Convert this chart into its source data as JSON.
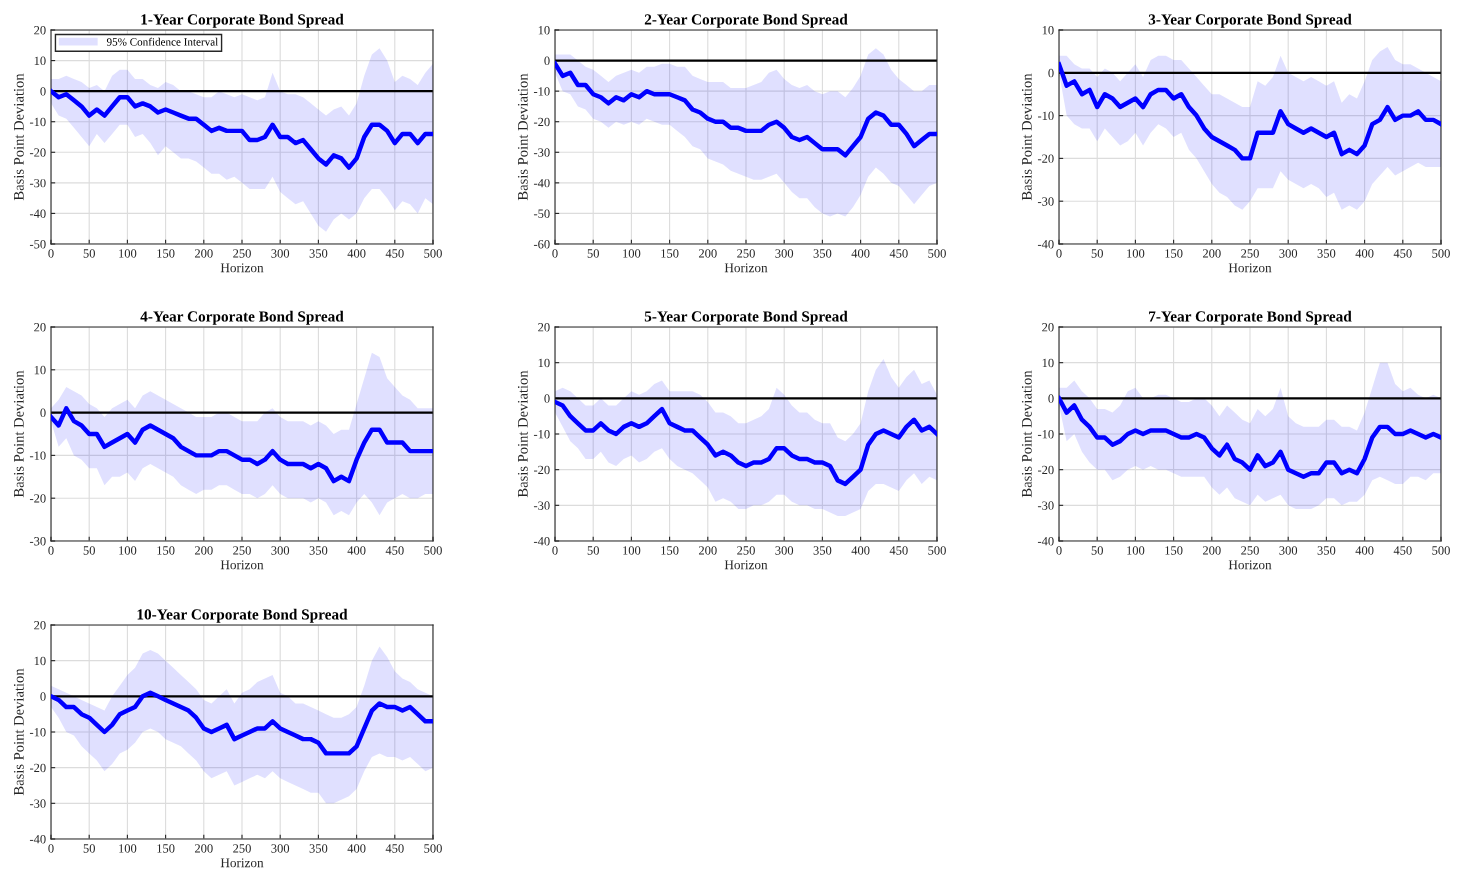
{
  "chart_data": [
    {
      "type": "line",
      "title": "1-Year Corporate Bond Spread",
      "xlabel": "Horizon",
      "ylabel": "Basis Point Deviation",
      "xlim": [
        0,
        500
      ],
      "ylim": [
        -50,
        20
      ],
      "xticks": [
        0,
        50,
        100,
        150,
        200,
        250,
        300,
        350,
        400,
        450,
        500
      ],
      "yticks": [
        -50,
        -40,
        -30,
        -20,
        -10,
        0,
        10,
        20
      ],
      "grid": true,
      "legend": "top left",
      "x": [
        0,
        10,
        20,
        30,
        40,
        50,
        60,
        70,
        80,
        90,
        100,
        110,
        120,
        130,
        140,
        150,
        160,
        170,
        180,
        190,
        200,
        210,
        220,
        230,
        240,
        250,
        260,
        270,
        280,
        290,
        300,
        310,
        320,
        330,
        340,
        350,
        360,
        370,
        380,
        390,
        400,
        410,
        420,
        430,
        440,
        450,
        460,
        470,
        480,
        490,
        500
      ],
      "ref_lines": [
        {
          "axis": "y",
          "value": 0,
          "color": "#000000"
        }
      ],
      "series": [
        {
          "name": "95% Confidence Interval",
          "color": "#0000ff",
          "upper": [
            4,
            4,
            5,
            4,
            3,
            1,
            2,
            0,
            5,
            7,
            7,
            4,
            4,
            2,
            1,
            3,
            2,
            0,
            0,
            -1,
            -2,
            -2,
            0,
            -1,
            -2,
            -1,
            -2,
            -3,
            -2,
            6,
            0,
            -1,
            -1,
            -2,
            -4,
            -6,
            -8,
            -6,
            -5,
            -8,
            -4,
            5,
            12,
            14,
            10,
            3,
            5,
            4,
            2,
            6,
            9
          ],
          "lower": [
            -4,
            -8,
            -9,
            -12,
            -15,
            -18,
            -14,
            -17,
            -14,
            -11,
            -11,
            -15,
            -14,
            -17,
            -21,
            -18,
            -20,
            -22,
            -22,
            -23,
            -25,
            -27,
            -27,
            -29,
            -28,
            -30,
            -32,
            -32,
            -32,
            -28,
            -33,
            -35,
            -37,
            -36,
            -40,
            -44,
            -46,
            -42,
            -40,
            -42,
            -40,
            -35,
            -32,
            -32,
            -35,
            -39,
            -36,
            -37,
            -40,
            -35,
            -37
          ],
          "values": [
            0,
            -2,
            -1,
            -3,
            -5,
            -8,
            -6,
            -8,
            -5,
            -2,
            -2,
            -5,
            -4,
            -5,
            -7,
            -6,
            -7,
            -8,
            -9,
            -9,
            -11,
            -13,
            -12,
            -13,
            -13,
            -13,
            -16,
            -16,
            -15,
            -11,
            -15,
            -15,
            -17,
            -16,
            -19,
            -22,
            -24,
            -21,
            -22,
            -25,
            -22,
            -15,
            -11,
            -11,
            -13,
            -17,
            -14,
            -14,
            -17,
            -14,
            -14
          ]
        }
      ]
    },
    {
      "type": "line",
      "title": "2-Year Corporate Bond Spread",
      "xlabel": "Horizon",
      "ylabel": "Basis Point Deviation",
      "xlim": [
        0,
        500
      ],
      "ylim": [
        -60,
        10
      ],
      "xticks": [
        0,
        50,
        100,
        150,
        200,
        250,
        300,
        350,
        400,
        450,
        500
      ],
      "yticks": [
        -60,
        -50,
        -40,
        -30,
        -20,
        -10,
        0,
        10
      ],
      "grid": true,
      "x": [
        0,
        10,
        20,
        30,
        40,
        50,
        60,
        70,
        80,
        90,
        100,
        110,
        120,
        130,
        140,
        150,
        160,
        170,
        180,
        190,
        200,
        210,
        220,
        230,
        240,
        250,
        260,
        270,
        280,
        290,
        300,
        310,
        320,
        330,
        340,
        350,
        360,
        370,
        380,
        390,
        400,
        410,
        420,
        430,
        440,
        450,
        460,
        470,
        480,
        490,
        500
      ],
      "ref_lines": [
        {
          "axis": "y",
          "value": 0,
          "color": "#000000"
        }
      ],
      "series": [
        {
          "color": "#0000ff",
          "upper": [
            2,
            2,
            2,
            0,
            -2,
            -3,
            -5,
            -7,
            -5,
            -4,
            -3,
            -4,
            -2,
            -2,
            -1,
            -1,
            -2,
            -2,
            -5,
            -6,
            -7,
            -7,
            -7,
            -9,
            -9,
            -9,
            -8,
            -7,
            -4,
            -3,
            -6,
            -8,
            -9,
            -8,
            -10,
            -11,
            -10,
            -10,
            -12,
            -9,
            -5,
            2,
            4,
            2,
            -3,
            -6,
            -8,
            -10,
            -10,
            -8,
            -8
          ],
          "lower": [
            -4,
            -10,
            -11,
            -15,
            -16,
            -19,
            -20,
            -22,
            -20,
            -21,
            -20,
            -21,
            -19,
            -20,
            -21,
            -21,
            -23,
            -25,
            -28,
            -29,
            -32,
            -33,
            -34,
            -36,
            -37,
            -38,
            -39,
            -39,
            -38,
            -37,
            -40,
            -43,
            -45,
            -45,
            -48,
            -50,
            -51,
            -50,
            -51,
            -48,
            -44,
            -38,
            -35,
            -37,
            -40,
            -41,
            -44,
            -47,
            -44,
            -41,
            -40
          ],
          "values": [
            -1,
            -5,
            -4,
            -8,
            -8,
            -11,
            -12,
            -14,
            -12,
            -13,
            -11,
            -12,
            -10,
            -11,
            -11,
            -11,
            -12,
            -13,
            -16,
            -17,
            -19,
            -20,
            -20,
            -22,
            -22,
            -23,
            -23,
            -23,
            -21,
            -20,
            -22,
            -25,
            -26,
            -25,
            -27,
            -29,
            -29,
            -29,
            -31,
            -28,
            -25,
            -19,
            -17,
            -18,
            -21,
            -21,
            -24,
            -28,
            -26,
            -24,
            -24
          ]
        }
      ]
    },
    {
      "type": "line",
      "title": "3-Year Corporate Bond Spread",
      "xlabel": "Horizon",
      "ylabel": "Basis Point Deviation",
      "xlim": [
        0,
        500
      ],
      "ylim": [
        -40,
        10
      ],
      "xticks": [
        0,
        50,
        100,
        150,
        200,
        250,
        300,
        350,
        400,
        450,
        500
      ],
      "yticks": [
        -40,
        -30,
        -20,
        -10,
        0,
        10
      ],
      "grid": true,
      "x": [
        0,
        10,
        20,
        30,
        40,
        50,
        60,
        70,
        80,
        90,
        100,
        110,
        120,
        130,
        140,
        150,
        160,
        170,
        180,
        190,
        200,
        210,
        220,
        230,
        240,
        250,
        260,
        270,
        280,
        290,
        300,
        310,
        320,
        330,
        340,
        350,
        360,
        370,
        380,
        390,
        400,
        410,
        420,
        430,
        440,
        450,
        460,
        470,
        480,
        490,
        500
      ],
      "ref_lines": [
        {
          "axis": "y",
          "value": 0,
          "color": "#000000"
        }
      ],
      "series": [
        {
          "color": "#0000ff",
          "upper": [
            4,
            4,
            2,
            1,
            1,
            -1,
            1,
            0,
            -2,
            0,
            2,
            -1,
            3,
            4,
            4,
            3,
            3,
            1,
            -1,
            -3,
            -5,
            -5,
            -6,
            -7,
            -8,
            -8,
            -2,
            -3,
            -1,
            4,
            0,
            -1,
            -2,
            -1,
            -2,
            -3,
            -2,
            -7,
            -5,
            -6,
            -2,
            3,
            5,
            6,
            3,
            2,
            2,
            1,
            0,
            -1,
            -2
          ],
          "lower": [
            0,
            -10,
            -12,
            -13,
            -13,
            -16,
            -13,
            -15,
            -17,
            -16,
            -14,
            -17,
            -14,
            -12,
            -13,
            -15,
            -14,
            -18,
            -20,
            -23,
            -26,
            -28,
            -29,
            -31,
            -32,
            -30,
            -27,
            -27,
            -27,
            -23,
            -25,
            -26,
            -27,
            -26,
            -27,
            -29,
            -28,
            -32,
            -31,
            -32,
            -30,
            -26,
            -24,
            -22,
            -24,
            -23,
            -22,
            -21,
            -22,
            -22,
            -22
          ],
          "values": [
            2,
            -3,
            -2,
            -5,
            -4,
            -8,
            -5,
            -6,
            -8,
            -7,
            -6,
            -8,
            -5,
            -4,
            -4,
            -6,
            -5,
            -8,
            -10,
            -13,
            -15,
            -16,
            -17,
            -18,
            -20,
            -20,
            -14,
            -14,
            -14,
            -9,
            -12,
            -13,
            -14,
            -13,
            -14,
            -15,
            -14,
            -19,
            -18,
            -19,
            -17,
            -12,
            -11,
            -8,
            -11,
            -10,
            -10,
            -9,
            -11,
            -11,
            -12
          ]
        }
      ]
    },
    {
      "type": "line",
      "title": "4-Year Corporate Bond Spread",
      "xlabel": "Horizon",
      "ylabel": "Basis Point Deviation",
      "xlim": [
        0,
        500
      ],
      "ylim": [
        -30,
        20
      ],
      "xticks": [
        0,
        50,
        100,
        150,
        200,
        250,
        300,
        350,
        400,
        450,
        500
      ],
      "yticks": [
        -30,
        -20,
        -10,
        0,
        10,
        20
      ],
      "grid": true,
      "x": [
        0,
        10,
        20,
        30,
        40,
        50,
        60,
        70,
        80,
        90,
        100,
        110,
        120,
        130,
        140,
        150,
        160,
        170,
        180,
        190,
        200,
        210,
        220,
        230,
        240,
        250,
        260,
        270,
        280,
        290,
        300,
        310,
        320,
        330,
        340,
        350,
        360,
        370,
        380,
        390,
        400,
        410,
        420,
        430,
        440,
        450,
        460,
        470,
        480,
        490,
        500
      ],
      "ref_lines": [
        {
          "axis": "y",
          "value": 0,
          "color": "#000000"
        }
      ],
      "series": [
        {
          "color": "#0000ff",
          "upper": [
            1,
            3,
            6,
            5,
            4,
            2,
            1,
            -1,
            1,
            2,
            3,
            1,
            4,
            5,
            4,
            3,
            2,
            1,
            0,
            -1,
            -1,
            -1,
            0,
            0,
            -1,
            -2,
            -2,
            -2,
            0,
            1,
            -1,
            -2,
            -2,
            -2,
            -3,
            -2,
            -3,
            -5,
            -4,
            -4,
            2,
            8,
            14,
            13,
            8,
            6,
            4,
            3,
            1,
            1,
            1
          ],
          "lower": [
            -2,
            -8,
            -6,
            -10,
            -11,
            -13,
            -13,
            -17,
            -15,
            -15,
            -14,
            -16,
            -13,
            -12,
            -13,
            -14,
            -15,
            -17,
            -18,
            -19,
            -18,
            -18,
            -17,
            -17,
            -18,
            -19,
            -19,
            -20,
            -19,
            -17,
            -19,
            -20,
            -20,
            -20,
            -21,
            -20,
            -21,
            -24,
            -23,
            -24,
            -21,
            -19,
            -21,
            -24,
            -21,
            -20,
            -19,
            -20,
            -20,
            -19,
            -19
          ],
          "values": [
            -1,
            -3,
            1,
            -2,
            -3,
            -5,
            -5,
            -8,
            -7,
            -6,
            -5,
            -7,
            -4,
            -3,
            -4,
            -5,
            -6,
            -8,
            -9,
            -10,
            -10,
            -10,
            -9,
            -9,
            -10,
            -11,
            -11,
            -12,
            -11,
            -9,
            -11,
            -12,
            -12,
            -12,
            -13,
            -12,
            -13,
            -16,
            -15,
            -16,
            -11,
            -7,
            -4,
            -4,
            -7,
            -7,
            -7,
            -9,
            -9,
            -9,
            -9
          ]
        }
      ]
    },
    {
      "type": "line",
      "title": "5-Year Corporate Bond Spread",
      "xlabel": "Horizon",
      "ylabel": "Basis Point Deviation",
      "xlim": [
        0,
        500
      ],
      "ylim": [
        -40,
        20
      ],
      "xticks": [
        0,
        50,
        100,
        150,
        200,
        250,
        300,
        350,
        400,
        450,
        500
      ],
      "yticks": [
        -40,
        -30,
        -20,
        -10,
        0,
        10,
        20
      ],
      "grid": true,
      "x": [
        0,
        10,
        20,
        30,
        40,
        50,
        60,
        70,
        80,
        90,
        100,
        110,
        120,
        130,
        140,
        150,
        160,
        170,
        180,
        190,
        200,
        210,
        220,
        230,
        240,
        250,
        260,
        270,
        280,
        290,
        300,
        310,
        320,
        330,
        340,
        350,
        360,
        370,
        380,
        390,
        400,
        410,
        420,
        430,
        440,
        450,
        460,
        470,
        480,
        490,
        500
      ],
      "ref_lines": [
        {
          "axis": "y",
          "value": 0,
          "color": "#000000"
        }
      ],
      "series": [
        {
          "color": "#0000ff",
          "upper": [
            2,
            3,
            2,
            0,
            -2,
            -2,
            0,
            -2,
            -2,
            0,
            2,
            1,
            2,
            4,
            5,
            2,
            2,
            2,
            2,
            1,
            -1,
            -4,
            -4,
            -5,
            -7,
            -7,
            -6,
            -5,
            -3,
            3,
            1,
            -2,
            -4,
            -4,
            -6,
            -7,
            -7,
            -11,
            -12,
            -10,
            -7,
            2,
            8,
            11,
            6,
            3,
            6,
            8,
            4,
            5,
            1
          ],
          "lower": [
            -4,
            -8,
            -12,
            -14,
            -17,
            -17,
            -15,
            -18,
            -19,
            -17,
            -16,
            -18,
            -17,
            -15,
            -14,
            -17,
            -19,
            -20,
            -21,
            -23,
            -25,
            -29,
            -28,
            -29,
            -31,
            -31,
            -30,
            -30,
            -29,
            -27,
            -27,
            -29,
            -30,
            -30,
            -31,
            -31,
            -32,
            -33,
            -33,
            -32,
            -31,
            -26,
            -24,
            -24,
            -25,
            -26,
            -23,
            -21,
            -24,
            -22,
            -23
          ],
          "values": [
            -1,
            -2,
            -5,
            -7,
            -9,
            -9,
            -7,
            -9,
            -10,
            -8,
            -7,
            -8,
            -7,
            -5,
            -3,
            -7,
            -8,
            -9,
            -9,
            -11,
            -13,
            -16,
            -15,
            -16,
            -18,
            -19,
            -18,
            -18,
            -17,
            -14,
            -14,
            -16,
            -17,
            -17,
            -18,
            -18,
            -19,
            -23,
            -24,
            -22,
            -20,
            -13,
            -10,
            -9,
            -10,
            -11,
            -8,
            -6,
            -9,
            -8,
            -10
          ]
        }
      ]
    },
    {
      "type": "line",
      "title": "7-Year Corporate Bond Spread",
      "xlabel": "Horizon",
      "ylabel": "Basis Point Deviation",
      "xlim": [
        0,
        500
      ],
      "ylim": [
        -40,
        20
      ],
      "xticks": [
        0,
        50,
        100,
        150,
        200,
        250,
        300,
        350,
        400,
        450,
        500
      ],
      "yticks": [
        -40,
        -30,
        -20,
        -10,
        0,
        10,
        20
      ],
      "grid": true,
      "x": [
        0,
        10,
        20,
        30,
        40,
        50,
        60,
        70,
        80,
        90,
        100,
        110,
        120,
        130,
        140,
        150,
        160,
        170,
        180,
        190,
        200,
        210,
        220,
        230,
        240,
        250,
        260,
        270,
        280,
        290,
        300,
        310,
        320,
        330,
        340,
        350,
        360,
        370,
        380,
        390,
        400,
        410,
        420,
        430,
        440,
        450,
        460,
        470,
        480,
        490,
        500
      ],
      "ref_lines": [
        {
          "axis": "y",
          "value": 0,
          "color": "#000000"
        }
      ],
      "series": [
        {
          "color": "#0000ff",
          "upper": [
            3,
            3,
            5,
            2,
            0,
            -3,
            -3,
            -4,
            -2,
            2,
            3,
            0,
            0,
            1,
            1,
            0,
            -1,
            -1,
            0,
            0,
            -2,
            -5,
            -2,
            -4,
            -6,
            -7,
            -3,
            -5,
            -3,
            3,
            -5,
            -7,
            -8,
            -8,
            -8,
            -6,
            -6,
            -8,
            -8,
            -9,
            -4,
            3,
            10,
            10,
            4,
            2,
            3,
            1,
            0,
            1,
            0
          ],
          "lower": [
            -2,
            -12,
            -10,
            -15,
            -18,
            -20,
            -20,
            -23,
            -22,
            -20,
            -19,
            -20,
            -19,
            -20,
            -20,
            -21,
            -22,
            -22,
            -22,
            -22,
            -25,
            -27,
            -25,
            -28,
            -29,
            -30,
            -27,
            -29,
            -28,
            -27,
            -30,
            -31,
            -31,
            -31,
            -30,
            -28,
            -28,
            -30,
            -29,
            -29,
            -27,
            -23,
            -22,
            -23,
            -24,
            -24,
            -22,
            -22,
            -23,
            -21,
            -21
          ],
          "values": [
            0,
            -4,
            -2,
            -6,
            -8,
            -11,
            -11,
            -13,
            -12,
            -10,
            -9,
            -10,
            -9,
            -9,
            -9,
            -10,
            -11,
            -11,
            -10,
            -11,
            -14,
            -16,
            -13,
            -17,
            -18,
            -20,
            -16,
            -19,
            -18,
            -15,
            -20,
            -21,
            -22,
            -21,
            -21,
            -18,
            -18,
            -21,
            -20,
            -21,
            -17,
            -11,
            -8,
            -8,
            -10,
            -10,
            -9,
            -10,
            -11,
            -10,
            -11
          ]
        }
      ]
    },
    {
      "type": "line",
      "title": "10-Year Corporate Bond Spread",
      "xlabel": "Horizon",
      "ylabel": "Basis Point Deviation",
      "xlim": [
        0,
        500
      ],
      "ylim": [
        -40,
        20
      ],
      "xticks": [
        0,
        50,
        100,
        150,
        200,
        250,
        300,
        350,
        400,
        450,
        500
      ],
      "yticks": [
        -40,
        -30,
        -20,
        -10,
        0,
        10,
        20
      ],
      "grid": true,
      "x": [
        0,
        10,
        20,
        30,
        40,
        50,
        60,
        70,
        80,
        90,
        100,
        110,
        120,
        130,
        140,
        150,
        160,
        170,
        180,
        190,
        200,
        210,
        220,
        230,
        240,
        250,
        260,
        270,
        280,
        290,
        300,
        310,
        320,
        330,
        340,
        350,
        360,
        370,
        380,
        390,
        400,
        410,
        420,
        430,
        440,
        450,
        460,
        470,
        480,
        490,
        500
      ],
      "ref_lines": [
        {
          "axis": "y",
          "value": 0,
          "color": "#000000"
        }
      ],
      "series": [
        {
          "color": "#0000ff",
          "upper": [
            3,
            2,
            1,
            0,
            -1,
            -2,
            -3,
            -4,
            0,
            3,
            6,
            8,
            12,
            13,
            12,
            10,
            8,
            6,
            4,
            2,
            -1,
            -2,
            0,
            2,
            -2,
            1,
            2,
            4,
            5,
            6,
            1,
            0,
            -2,
            -2,
            -3,
            -4,
            -5,
            -6,
            -6,
            -5,
            -3,
            3,
            10,
            14,
            11,
            7,
            5,
            4,
            2,
            1,
            0
          ],
          "lower": [
            -3,
            -6,
            -10,
            -11,
            -14,
            -16,
            -18,
            -21,
            -19,
            -16,
            -15,
            -13,
            -10,
            -9,
            -10,
            -12,
            -13,
            -14,
            -16,
            -18,
            -21,
            -23,
            -22,
            -21,
            -25,
            -24,
            -23,
            -22,
            -23,
            -21,
            -23,
            -24,
            -25,
            -26,
            -27,
            -27,
            -30,
            -30,
            -29,
            -28,
            -26,
            -21,
            -17,
            -16,
            -17,
            -17,
            -18,
            -17,
            -19,
            -21,
            -20
          ],
          "values": [
            0,
            -1,
            -3,
            -3,
            -5,
            -6,
            -8,
            -10,
            -8,
            -5,
            -4,
            -3,
            0,
            1,
            0,
            -1,
            -2,
            -3,
            -4,
            -6,
            -9,
            -10,
            -9,
            -8,
            -12,
            -11,
            -10,
            -9,
            -9,
            -7,
            -9,
            -10,
            -11,
            -12,
            -12,
            -13,
            -16,
            -16,
            -16,
            -16,
            -14,
            -9,
            -4,
            -2,
            -3,
            -3,
            -4,
            -3,
            -5,
            -7,
            -7
          ]
        }
      ]
    }
  ]
}
